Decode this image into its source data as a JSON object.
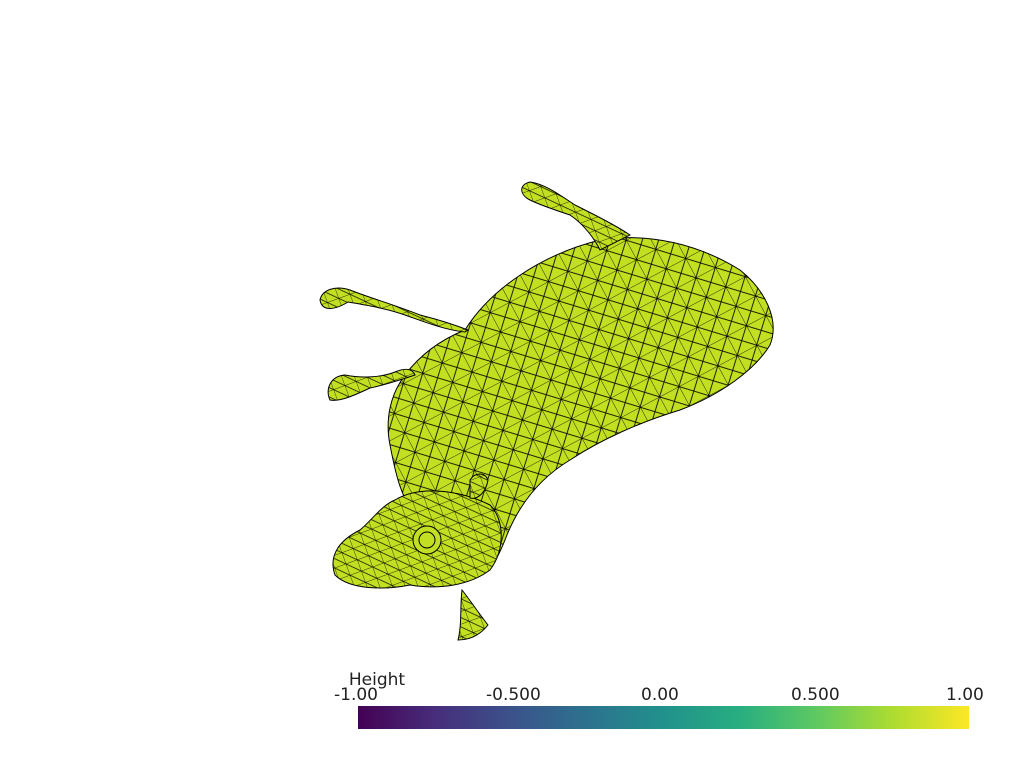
{
  "scene": {
    "mesh_name": "cow",
    "mesh_color": "#c2e021",
    "edge_color": "#000000",
    "background": "#ffffff"
  },
  "scalar_bar": {
    "title": "Height",
    "ticks": [
      "-1.00",
      "-0.500",
      "0.00",
      "0.500",
      "1.00"
    ],
    "range": [
      -1.0,
      1.0
    ],
    "colormap": "viridis",
    "colormap_stops": [
      "#440154",
      "#472d7b",
      "#3b528b",
      "#2c728e",
      "#21918c",
      "#28ae80",
      "#5ec962",
      "#addc30",
      "#fde725"
    ]
  }
}
